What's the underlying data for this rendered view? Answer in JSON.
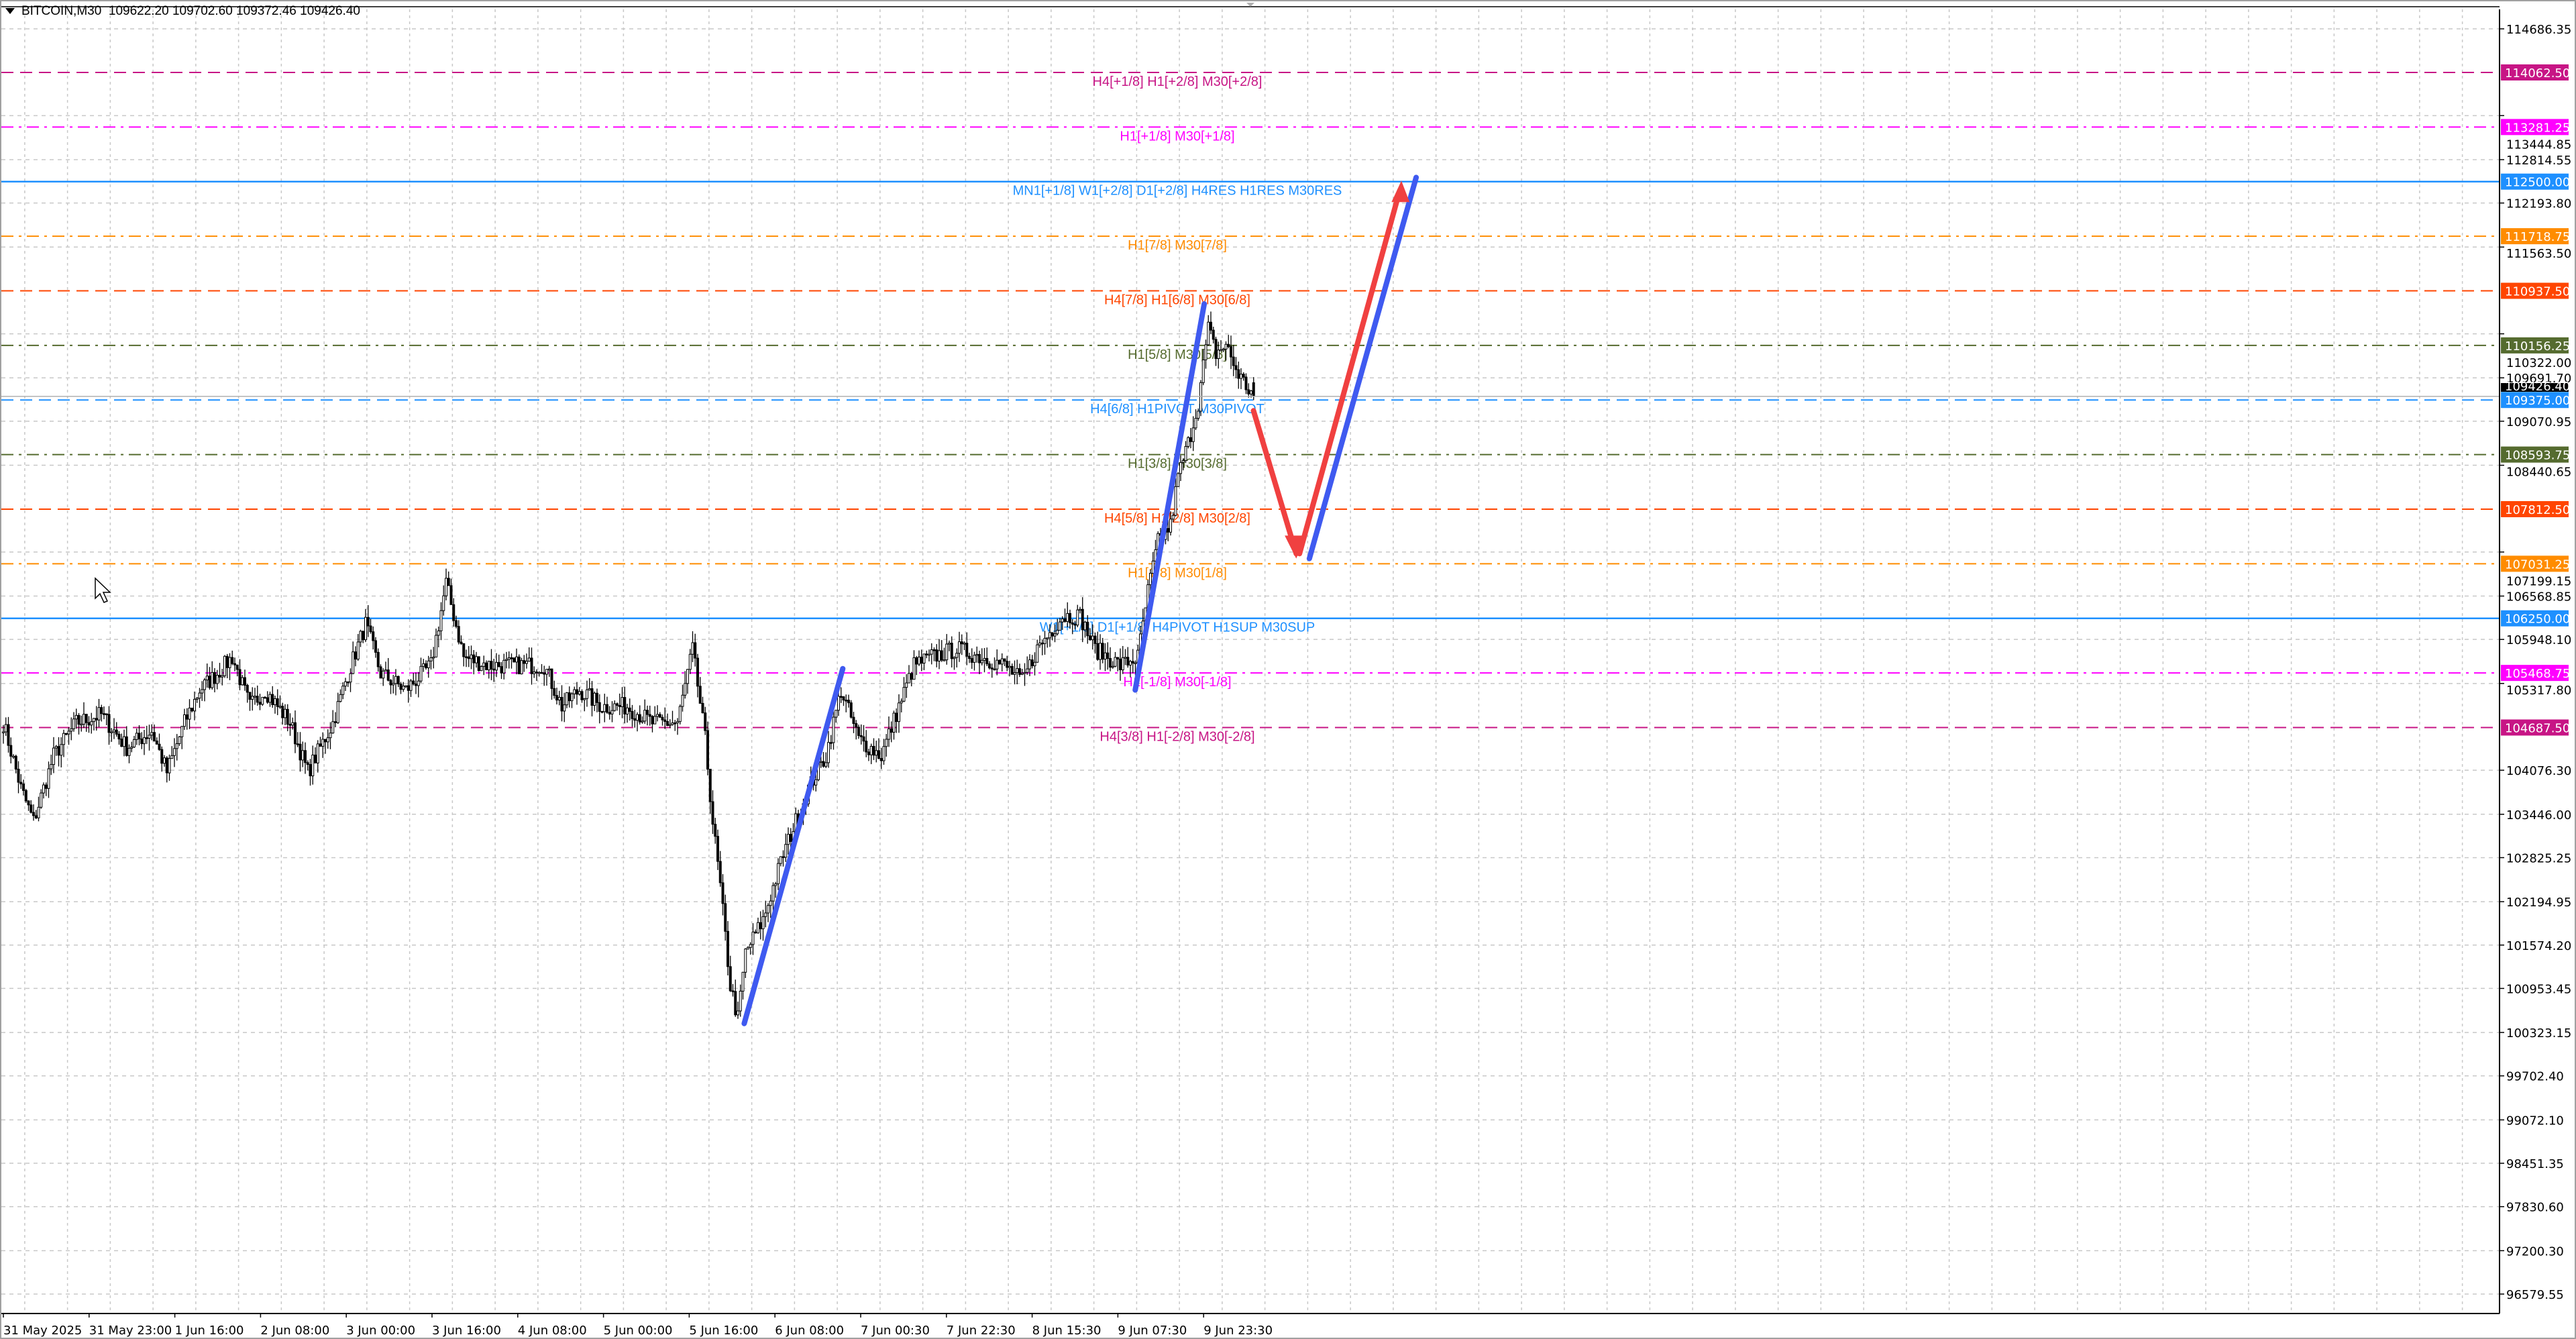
{
  "header": {
    "menu_icon": "triangle-down-icon",
    "symbol_timeframe": "BITCOIN,M30",
    "ohlc": "109622.20 109702.60 109372.46 109426.40"
  },
  "price_axis": {
    "ticks": [
      "114686.35",
      "113444.85",
      "112814.55",
      "112193.80",
      "111563.50",
      "110322.00",
      "109691.70",
      "109070.95",
      "108440.65",
      "107199.15",
      "106568.85",
      "105948.10",
      "105317.80",
      "104076.30",
      "103446.00",
      "102825.25",
      "102194.95",
      "101574.20",
      "100953.45",
      "100323.15",
      "99702.40",
      "99072.10",
      "98451.35",
      "97830.60",
      "97200.30",
      "96579.55"
    ],
    "current_price": {
      "label": "109426.40",
      "color": "#000000"
    }
  },
  "time_axis": {
    "labels": [
      "31 May 2025",
      "31 May 23:00",
      "1 Jun 16:00",
      "2 Jun 08:00",
      "3 Jun 00:00",
      "3 Jun 16:00",
      "4 Jun 08:00",
      "5 Jun 00:00",
      "5 Jun 16:00",
      "6 Jun 08:00",
      "7 Jun 00:30",
      "7 Jun 22:30",
      "8 Jun 15:30",
      "9 Jun 07:30",
      "9 Jun 23:30"
    ]
  },
  "levels": [
    {
      "price": 114062.5,
      "tag": "114062.50",
      "label": "H4[+1/8] H1[+2/8] M30[+2/8]",
      "color": "#c71585",
      "style": "dash"
    },
    {
      "price": 113281.25,
      "tag": "113281.25",
      "label": "H1[+1/8] M30[+1/8]",
      "color": "#ff00ff",
      "style": "dashdot"
    },
    {
      "price": 112500.0,
      "tag": "112500.00",
      "label": "MN1[+1/8] W1[+2/8] D1[+2/8] H4RES H1RES M30RES",
      "color": "#1e90ff",
      "style": "solid"
    },
    {
      "price": 111718.75,
      "tag": "111718.75",
      "label": "H1[7/8] M30[7/8]",
      "color": "#ff8c00",
      "style": "dashdot"
    },
    {
      "price": 110937.5,
      "tag": "110937.50",
      "label": "H4[7/8] H1[6/8] M30[6/8]",
      "color": "#ff4500",
      "style": "dash"
    },
    {
      "price": 110156.25,
      "tag": "110156.25",
      "label": "H1[5/8] M30[5/8]",
      "color": "#556b2f",
      "style": "dashdot"
    },
    {
      "price": 109375.0,
      "tag": "109375.00",
      "label": "H4[6/8] H1PIVOT M30PIVOT",
      "color": "#1e90ff",
      "style": "dash"
    },
    {
      "price": 108593.75,
      "tag": "108593.75",
      "label": "H1[3/8] M30[3/8]",
      "color": "#556b2f",
      "style": "dashdot"
    },
    {
      "price": 107812.5,
      "tag": "107812.50",
      "label": "H4[5/8] H1[2/8] M30[2/8]",
      "color": "#ff4500",
      "style": "dash"
    },
    {
      "price": 107031.25,
      "tag": "107031.25",
      "label": "H1[1/8] M30[1/8]",
      "color": "#ff8c00",
      "style": "dashdot"
    },
    {
      "price": 106250.0,
      "tag": "106250.00",
      "label": "W1[+1/8] D1[+1/8] H4PIVOT H1SUP M30SUP",
      "color": "#1e90ff",
      "style": "solid"
    },
    {
      "price": 105468.75,
      "tag": "105468.75",
      "label": "H1[-1/8] M30[-1/8]",
      "color": "#ff00ff",
      "style": "dashdot"
    },
    {
      "price": 104687.5,
      "tag": "104687.50",
      "label": "H4[3/8] H1[-2/8] M30[-2/8]",
      "color": "#c71585",
      "style": "dash"
    }
  ],
  "chart_data": {
    "type": "candlestick",
    "symbol": "BITCOIN",
    "timeframe": "M30",
    "ylim": [
      96579.55,
      114686.35
    ],
    "grid": true,
    "last_bar": {
      "open": 109622.2,
      "high": 109702.6,
      "low": 109372.46,
      "close": 109426.4
    },
    "approx_close_path": [
      [
        0,
        104755
      ],
      [
        7,
        103814
      ],
      [
        12,
        103344
      ],
      [
        20,
        104284
      ],
      [
        29,
        104755
      ],
      [
        39,
        104872
      ],
      [
        49,
        104402
      ],
      [
        59,
        104637
      ],
      [
        65,
        104049
      ],
      [
        72,
        104755
      ],
      [
        78,
        105225
      ],
      [
        85,
        105460
      ],
      [
        91,
        105695
      ],
      [
        98,
        104990
      ],
      [
        104,
        105225
      ],
      [
        114,
        104755
      ],
      [
        121,
        104049
      ],
      [
        131,
        104755
      ],
      [
        137,
        105460
      ],
      [
        144,
        106165
      ],
      [
        150,
        105460
      ],
      [
        160,
        105225
      ],
      [
        170,
        105578
      ],
      [
        176,
        106753
      ],
      [
        183,
        105695
      ],
      [
        193,
        105578
      ],
      [
        202,
        105578
      ],
      [
        215,
        105578
      ],
      [
        222,
        104990
      ],
      [
        229,
        105225
      ],
      [
        238,
        104990
      ],
      [
        248,
        104990
      ],
      [
        258,
        104755
      ],
      [
        268,
        104755
      ],
      [
        274,
        105812
      ],
      [
        279,
        104520
      ],
      [
        282,
        103344
      ],
      [
        285,
        102404
      ],
      [
        289,
        100988
      ],
      [
        292,
        100523
      ],
      [
        295,
        101463
      ],
      [
        302,
        101933
      ],
      [
        310,
        102873
      ],
      [
        320,
        103814
      ],
      [
        327,
        104284
      ],
      [
        333,
        105225
      ],
      [
        340,
        104520
      ],
      [
        349,
        104284
      ],
      [
        356,
        104990
      ],
      [
        362,
        105578
      ],
      [
        369,
        105695
      ],
      [
        379,
        105812
      ],
      [
        389,
        105695
      ],
      [
        398,
        105578
      ],
      [
        405,
        105343
      ],
      [
        411,
        105812
      ],
      [
        421,
        106283
      ],
      [
        428,
        106283
      ],
      [
        434,
        105812
      ],
      [
        444,
        105578
      ],
      [
        451,
        105695
      ],
      [
        455,
        106636
      ],
      [
        459,
        107341
      ],
      [
        464,
        107576
      ],
      [
        467,
        108281
      ],
      [
        471,
        108751
      ],
      [
        475,
        109339
      ],
      [
        479,
        110397
      ],
      [
        482,
        110044
      ],
      [
        486,
        110162
      ],
      [
        490,
        109809
      ],
      [
        494,
        109574
      ],
      [
        497,
        109426
      ]
    ],
    "annotations": [
      "trend-line-up-1",
      "trend-line-up-2",
      "forecast-arrow-down-up",
      "trend-line-up-3"
    ]
  }
}
